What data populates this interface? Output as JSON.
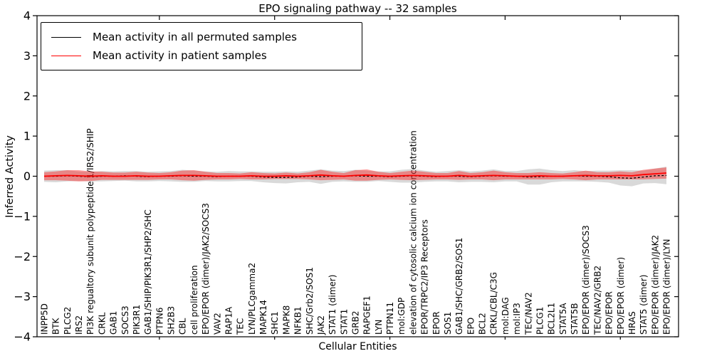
{
  "chart_data": {
    "type": "line",
    "title": "EPO signaling pathway -- 32 samples",
    "xlabel": "Cellular Entities",
    "ylabel": "Inferred Activity",
    "ylim": [
      -4,
      4
    ],
    "yticks": [
      "4",
      "3",
      "2",
      "1",
      "0",
      "−1",
      "−2",
      "−3",
      "−4"
    ],
    "grid": false,
    "legend_position": "upper left",
    "categories": [
      "INPP5D",
      "BTK",
      "PLCG2",
      "IRS2",
      "PI3K regualtory subunit polypeptide 1/IRS2/SHIP",
      "CRKL",
      "GAB1",
      "SOCS3",
      "PIK3R1",
      "GAB1/SHIP/PIK3R1/SHP2/SHC",
      "PTPN6",
      "SH2B3",
      "CBL",
      "cell proliferation",
      "EPO/EPOR (dimer)/JAK2/SOCS3",
      "VAV2",
      "RAP1A",
      "TEC",
      "LYN/PLCgamma2",
      "MAPK14",
      "SHC1",
      "MAPK8",
      "NFKB1",
      "SHC/Grb2/SOS1",
      "JAK2",
      "STAT1 (dimer)",
      "STAT1",
      "GRB2",
      "RAPGEF1",
      "LYN",
      "PTPN11",
      "mol:GDP",
      "elevation of cytosolic calcium ion concentration",
      "EPOR/TRPC2/IP3 Receptors",
      "EPOR",
      "SOS1",
      "GAB1/SHC/GRB2/SOS1",
      "EPO",
      "BCL2",
      "CRKL/CBL/C3G",
      "mol:DAG",
      "mol:IP3",
      "TEC/NAV2",
      "PLCG1",
      "BCL2L1",
      "STAT5A",
      "STAT5B",
      "EPO/EPOR (dimer)/SOCS3",
      "TEC/NAV2/GRB2",
      "EPO/EPOR",
      "EPO/EPOR (dimer)",
      "HRAS",
      "STAT5 (dimer)",
      "EPO/EPOR (dimer)/JAK2",
      "EPO/EPOR (dimer)/LYN"
    ],
    "series": [
      {
        "name": "Mean activity in all permuted samples",
        "color": "#000000",
        "style": "dashed",
        "band_color": "#888888",
        "band_opacity": 0.32,
        "values": [
          0.0,
          0.0,
          0.01,
          0.0,
          -0.01,
          0.0,
          0.0,
          0.01,
          0.0,
          -0.01,
          0.0,
          0.0,
          0.01,
          0.0,
          0.0,
          -0.01,
          0.0,
          0.0,
          0.0,
          -0.02,
          -0.03,
          -0.03,
          -0.02,
          0.0,
          -0.01,
          0.0,
          0.0,
          0.01,
          0.0,
          0.0,
          -0.01,
          0.0,
          0.01,
          0.0,
          -0.01,
          0.0,
          0.0,
          -0.01,
          0.0,
          0.01,
          0.0,
          0.0,
          -0.02,
          -0.01,
          0.0,
          0.0,
          0.01,
          0.0,
          0.0,
          -0.01,
          -0.04,
          -0.05,
          -0.02,
          0.01,
          0.02
        ],
        "band": [
          0.14,
          0.15,
          0.14,
          0.12,
          0.12,
          0.13,
          0.12,
          0.12,
          0.13,
          0.12,
          0.12,
          0.13,
          0.15,
          0.14,
          0.12,
          0.12,
          0.13,
          0.12,
          0.12,
          0.13,
          0.14,
          0.15,
          0.13,
          0.14,
          0.18,
          0.14,
          0.13,
          0.15,
          0.14,
          0.12,
          0.13,
          0.16,
          0.17,
          0.14,
          0.12,
          0.13,
          0.15,
          0.13,
          0.14,
          0.16,
          0.13,
          0.13,
          0.19,
          0.2,
          0.15,
          0.13,
          0.14,
          0.13,
          0.14,
          0.15,
          0.19,
          0.2,
          0.16,
          0.18,
          0.22
        ]
      },
      {
        "name": "Mean activity in patient samples",
        "color": "#ff0000",
        "style": "solid",
        "band_color": "#ff0000",
        "band_opacity": 0.38,
        "values": [
          0.0,
          0.01,
          0.02,
          0.01,
          0.0,
          0.01,
          0.0,
          0.0,
          0.01,
          0.0,
          0.0,
          0.01,
          0.02,
          0.02,
          0.01,
          0.0,
          0.0,
          0.0,
          0.01,
          0.0,
          0.0,
          0.01,
          0.0,
          0.01,
          0.03,
          0.01,
          0.0,
          0.02,
          0.03,
          0.01,
          0.0,
          0.01,
          0.02,
          0.01,
          0.0,
          0.0,
          0.02,
          0.0,
          0.01,
          0.02,
          0.01,
          0.0,
          0.0,
          0.01,
          0.0,
          0.0,
          0.01,
          0.02,
          0.01,
          0.01,
          0.02,
          0.01,
          0.04,
          0.06,
          0.08
        ],
        "band": [
          0.1,
          0.11,
          0.13,
          0.14,
          0.12,
          0.1,
          0.09,
          0.09,
          0.1,
          0.09,
          0.08,
          0.09,
          0.12,
          0.13,
          0.1,
          0.08,
          0.08,
          0.07,
          0.09,
          0.08,
          0.07,
          0.08,
          0.07,
          0.09,
          0.13,
          0.1,
          0.08,
          0.13,
          0.14,
          0.1,
          0.08,
          0.1,
          0.12,
          0.1,
          0.08,
          0.08,
          0.11,
          0.08,
          0.09,
          0.12,
          0.09,
          0.08,
          0.08,
          0.09,
          0.08,
          0.07,
          0.09,
          0.12,
          0.09,
          0.09,
          0.1,
          0.09,
          0.12,
          0.13,
          0.14
        ]
      }
    ]
  },
  "legend": {
    "items": [
      {
        "label": "Mean activity in all permuted samples",
        "color": "#000000"
      },
      {
        "label": "Mean activity in patient samples",
        "color": "#ff0000"
      }
    ]
  }
}
